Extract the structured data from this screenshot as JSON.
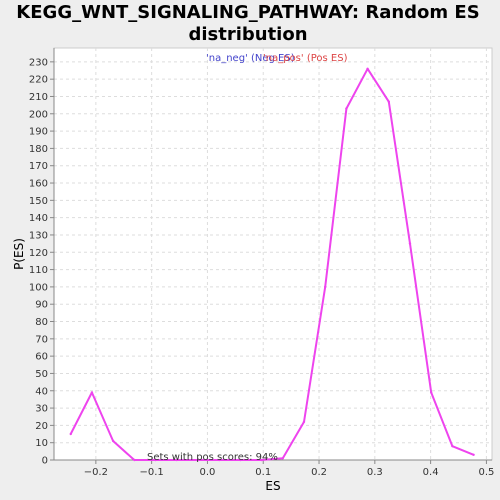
{
  "chart_data": {
    "type": "line",
    "title_line1": "KEGG_WNT_SIGNALING_PATHWAY: Random ES",
    "title_line2": "distribution",
    "xlabel": "ES",
    "ylabel": "P(ES)",
    "xlim": [
      -0.275,
      0.51
    ],
    "ylim": [
      0,
      238
    ],
    "x_ticks": [
      -0.2,
      -0.1,
      0.0,
      0.1,
      0.2,
      0.3,
      0.4,
      0.5
    ],
    "x_tick_labels": [
      "−0.2",
      "−0.1",
      "0.0",
      "0.1",
      "0.2",
      "0.3",
      "0.4",
      "0.5"
    ],
    "y_ticks": [
      0,
      10,
      20,
      30,
      40,
      50,
      60,
      70,
      80,
      90,
      100,
      110,
      120,
      130,
      140,
      150,
      160,
      170,
      180,
      190,
      200,
      210,
      220,
      230
    ],
    "grid": true,
    "legend": [
      {
        "label": "'na_neg' (Neg ES)",
        "color": "#4444cc"
      },
      {
        "label": "'na_pos' (Pos ES)",
        "color": "#dd4444"
      }
    ],
    "annotation": "Sets with pos scores: 94%",
    "series": [
      {
        "color": "#ee44ee",
        "x": [
          -0.245,
          -0.207,
          -0.169,
          -0.131,
          -0.093,
          -0.055,
          -0.017,
          0.021,
          0.059,
          0.097,
          0.135,
          0.173,
          0.211,
          0.249,
          0.287,
          0.325,
          0.363,
          0.401,
          0.439,
          0.477
        ],
        "y": [
          15,
          39,
          11,
          0,
          0,
          0,
          0,
          0,
          0,
          0,
          1,
          22,
          100,
          203,
          226,
          207,
          125,
          39,
          8,
          3
        ]
      }
    ]
  }
}
